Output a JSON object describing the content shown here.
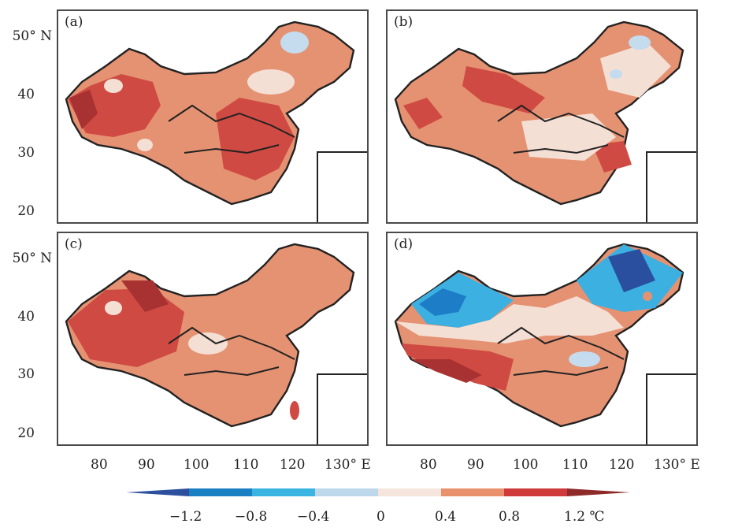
{
  "panels": [
    {
      "label": "(a)"
    },
    {
      "label": "(b)"
    },
    {
      "label": "(c)"
    },
    {
      "label": "(d)"
    }
  ],
  "latitude_labels_top": [
    "50° N",
    "40",
    "30",
    "20"
  ],
  "latitude_labels_bottom": [
    "50° N",
    "40",
    "30",
    "20"
  ],
  "longitude_labels": [
    "80",
    "90",
    "100",
    "110",
    "120",
    "130° E"
  ],
  "colorbar": {
    "ticks": [
      "−1.2",
      "−0.8",
      "−0.4",
      "0",
      "0.4",
      "0.8",
      "1.2 ℃"
    ],
    "colors": [
      "#2c4f9e",
      "#1b7fc4",
      "#3ab4e0",
      "#bcd8ea",
      "#f6e5dc",
      "#e9906c",
      "#cf3b3a",
      "#8e2a2a"
    ]
  },
  "palette": {
    "dark_red": "#a83232",
    "red": "#cf4a43",
    "orange": "#e59272",
    "light": "#f4dfd4",
    "pale_blue": "#c4dcee",
    "cyan": "#3cb0e0",
    "blue": "#1d7dc6",
    "navy": "#2a4f9f"
  }
}
